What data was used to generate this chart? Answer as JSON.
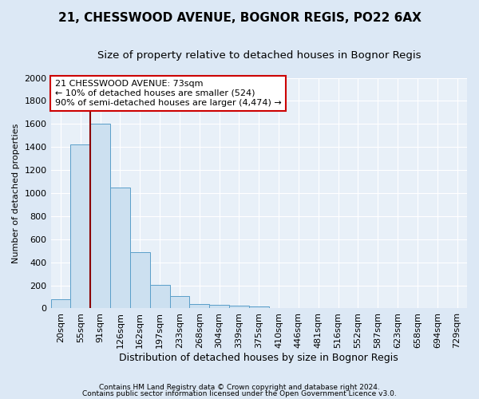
{
  "title1": "21, CHESSWOOD AVENUE, BOGNOR REGIS, PO22 6AX",
  "title2": "Size of property relative to detached houses in Bognor Regis",
  "xlabel": "Distribution of detached houses by size in Bognor Regis",
  "ylabel": "Number of detached properties",
  "footnote1": "Contains HM Land Registry data © Crown copyright and database right 2024.",
  "footnote2": "Contains public sector information licensed under the Open Government Licence v3.0.",
  "bar_labels": [
    "20sqm",
    "55sqm",
    "91sqm",
    "126sqm",
    "162sqm",
    "197sqm",
    "233sqm",
    "268sqm",
    "304sqm",
    "339sqm",
    "375sqm",
    "410sqm",
    "446sqm",
    "481sqm",
    "516sqm",
    "552sqm",
    "587sqm",
    "623sqm",
    "658sqm",
    "694sqm",
    "729sqm"
  ],
  "bar_values": [
    80,
    1420,
    1600,
    1050,
    490,
    205,
    105,
    38,
    28,
    22,
    18,
    0,
    0,
    0,
    0,
    0,
    0,
    0,
    0,
    0,
    0
  ],
  "bar_color": "#cce0f0",
  "bar_edge_color": "#5a9ec9",
  "ylim": [
    0,
    2000
  ],
  "yticks": [
    0,
    200,
    400,
    600,
    800,
    1000,
    1200,
    1400,
    1600,
    1800,
    2000
  ],
  "property_line_x": 1.5,
  "vline_color": "#8b0000",
  "annotation_text": "21 CHESSWOOD AVENUE: 73sqm\n← 10% of detached houses are smaller (524)\n90% of semi-detached houses are larger (4,474) →",
  "annotation_box_color": "#ffffff",
  "annotation_box_edge_color": "#cc0000",
  "bg_color": "#dce8f5",
  "plot_bg_color": "#e8f0f8",
  "grid_color": "#ffffff",
  "title1_fontsize": 11,
  "title2_fontsize": 9.5,
  "xlabel_fontsize": 9,
  "ylabel_fontsize": 8,
  "tick_fontsize": 8,
  "annotation_fontsize": 8,
  "footnote_fontsize": 6.5
}
